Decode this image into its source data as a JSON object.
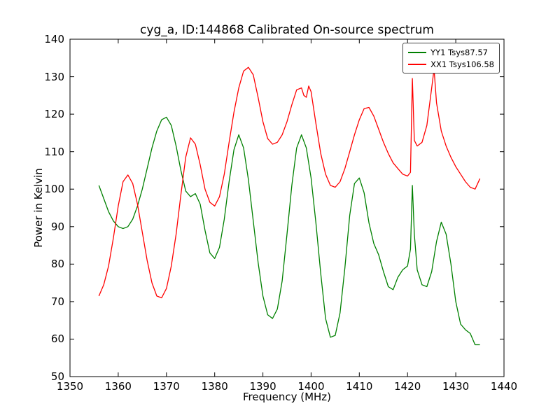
{
  "chart_data": {
    "type": "line",
    "title": "cyg_a, ID:144868 Calibrated On-source spectrum",
    "xlabel": "Frequency (MHz)",
    "ylabel": "Power in Kelvin",
    "xlim": [
      1350,
      1440
    ],
    "ylim": [
      50,
      140
    ],
    "xticks": [
      1350,
      1360,
      1370,
      1380,
      1390,
      1400,
      1410,
      1420,
      1430,
      1440
    ],
    "yticks": [
      50,
      60,
      70,
      80,
      90,
      100,
      110,
      120,
      130,
      140
    ],
    "grid": false,
    "legend_position": "upper right",
    "series": [
      {
        "name": "YY1 Tsys87.57",
        "color": "#008000",
        "x": [
          1356,
          1357,
          1358,
          1359,
          1360,
          1361,
          1362,
          1363,
          1364,
          1365,
          1366,
          1367,
          1368,
          1369,
          1370,
          1371,
          1372,
          1373,
          1374,
          1375,
          1376,
          1377,
          1378,
          1379,
          1380,
          1381,
          1382,
          1383,
          1384,
          1385,
          1386,
          1387,
          1388,
          1389,
          1390,
          1391,
          1392,
          1393,
          1394,
          1395,
          1396,
          1397,
          1398,
          1399,
          1400,
          1401,
          1402,
          1403,
          1404,
          1405,
          1406,
          1407,
          1408,
          1409,
          1410,
          1411,
          1412,
          1413,
          1414,
          1415,
          1416,
          1417,
          1418,
          1419,
          1420,
          1420.6,
          1421,
          1421.4,
          1422,
          1423,
          1424,
          1425,
          1426,
          1427,
          1428,
          1429,
          1430,
          1431,
          1432,
          1433,
          1434,
          1435
        ],
        "y": [
          101,
          97.5,
          94,
          91.5,
          90,
          89.5,
          90,
          92,
          95.5,
          100,
          105.5,
          111,
          115.5,
          118.5,
          119.2,
          117,
          111.5,
          105,
          99.5,
          98,
          98.8,
          96,
          89,
          83,
          81.5,
          84.5,
          92,
          102,
          110.5,
          114.5,
          111,
          102.5,
          91.5,
          80.5,
          71.5,
          66.5,
          65.5,
          68,
          75.5,
          88,
          101,
          111,
          114.5,
          111,
          103,
          91,
          77.5,
          65.5,
          60.5,
          61,
          67,
          79,
          93,
          101.5,
          103,
          99,
          91,
          85.5,
          82.5,
          78,
          74,
          73.2,
          76.5,
          78.5,
          79.5,
          84,
          101,
          88,
          78.5,
          74.5,
          74,
          78,
          86,
          91.2,
          88,
          80,
          70,
          64,
          62.5,
          61.5,
          58.5,
          58.5
        ]
      },
      {
        "name": "XX1 Tsys106.58",
        "color": "#ff0000",
        "x": [
          1356,
          1357,
          1358,
          1359,
          1360,
          1361,
          1362,
          1363,
          1364,
          1365,
          1366,
          1367,
          1368,
          1369,
          1370,
          1371,
          1372,
          1373,
          1374,
          1375,
          1376,
          1377,
          1378,
          1379,
          1380,
          1381,
          1382,
          1383,
          1384,
          1385,
          1386,
          1387,
          1388,
          1389,
          1390,
          1391,
          1392,
          1393,
          1394,
          1395,
          1396,
          1397,
          1398,
          1398.5,
          1399,
          1399.5,
          1400,
          1401,
          1402,
          1403,
          1404,
          1405,
          1406,
          1407,
          1408,
          1409,
          1410,
          1411,
          1412,
          1413,
          1414,
          1415,
          1416,
          1417,
          1418,
          1419,
          1420,
          1420.6,
          1421,
          1421.4,
          1422,
          1423,
          1424,
          1425,
          1425.5,
          1426,
          1427,
          1428,
          1429,
          1430,
          1431,
          1432,
          1433,
          1434,
          1435
        ],
        "y": [
          71.5,
          74.5,
          79.5,
          87,
          95.5,
          102,
          103.8,
          101.5,
          96,
          88.5,
          81,
          75,
          71.5,
          71,
          73.5,
          79.5,
          88,
          98.5,
          108.5,
          113.7,
          112,
          106.5,
          100,
          96.5,
          95.5,
          98,
          104,
          112.5,
          120.5,
          127,
          131.5,
          132.5,
          130.5,
          124.5,
          118,
          113.5,
          112,
          112.5,
          114.5,
          118,
          122.5,
          126.5,
          127,
          125,
          124.5,
          127.5,
          126,
          117.5,
          109.5,
          104,
          101,
          100.5,
          102,
          105.5,
          110,
          114.5,
          118.5,
          121.5,
          121.8,
          119.5,
          116,
          112.5,
          109.5,
          107,
          105.5,
          104,
          103.5,
          104.5,
          129.5,
          113,
          111.5,
          112.5,
          117,
          127,
          132,
          123,
          115.5,
          111.5,
          108.5,
          106,
          104,
          102,
          100.5,
          100,
          102.8
        ]
      }
    ]
  }
}
